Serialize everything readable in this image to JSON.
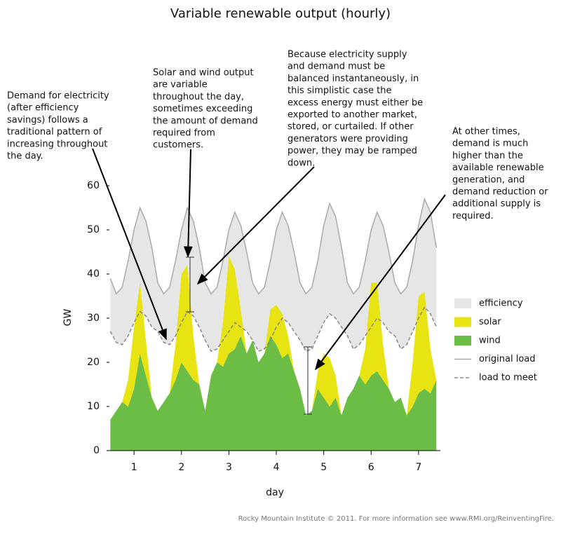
{
  "chart_data": {
    "type": "area",
    "title": "Variable renewable output (hourly)",
    "xlabel": "day",
    "ylabel": "GW",
    "xlim": [
      0.48,
      7.46
    ],
    "xticks": [
      1,
      2,
      3,
      4,
      5,
      6,
      7
    ],
    "ylim": [
      0,
      60
    ],
    "yticks": [
      0,
      10,
      20,
      30,
      40,
      50,
      60
    ],
    "x": [
      0.5,
      0.625,
      0.75,
      0.875,
      1,
      1.125,
      1.25,
      1.375,
      1.5,
      1.625,
      1.75,
      1.875,
      2,
      2.125,
      2.25,
      2.375,
      2.5,
      2.625,
      2.75,
      2.875,
      3,
      3.125,
      3.25,
      3.375,
      3.5,
      3.625,
      3.75,
      3.875,
      4,
      4.125,
      4.25,
      4.375,
      4.5,
      4.625,
      4.75,
      4.875,
      5,
      5.125,
      5.25,
      5.375,
      5.5,
      5.625,
      5.75,
      5.875,
      6,
      6.125,
      6.25,
      6.375,
      6.5,
      6.625,
      6.75,
      6.875,
      7,
      7.125,
      7.25,
      7.375
    ],
    "series": [
      {
        "name": "efficiency",
        "kind": "band",
        "color": "#e6e6e7"
      },
      {
        "name": "solar",
        "kind": "area",
        "color": "#e8e414",
        "values": [
          0,
          0,
          0,
          6,
          14,
          16,
          8,
          0,
          0,
          0,
          0,
          8,
          20,
          24,
          10,
          0,
          0,
          0,
          0,
          10,
          22,
          18,
          6,
          0,
          0,
          0,
          0,
          6,
          9,
          10,
          4,
          0,
          0,
          0,
          0,
          4,
          10,
          11,
          5,
          0,
          0,
          0,
          0,
          8,
          21,
          20,
          8,
          0,
          0,
          0,
          0,
          10,
          22,
          22,
          10,
          0
        ]
      },
      {
        "name": "wind",
        "kind": "area",
        "color": "#6bbd45",
        "values": [
          7,
          9,
          11,
          10,
          14,
          22,
          17,
          12,
          9,
          11,
          13,
          16,
          20,
          18,
          16,
          15,
          9,
          17,
          20,
          19,
          22,
          23,
          26,
          22,
          25,
          20,
          22,
          26,
          24,
          21,
          22,
          18,
          14,
          8,
          9,
          14,
          12,
          10,
          12,
          8,
          12,
          14,
          17,
          15,
          17,
          18,
          16,
          14,
          11,
          12,
          8,
          10,
          13,
          14,
          13,
          16
        ]
      },
      {
        "name": "original load",
        "kind": "line",
        "color": "#aaaaaa",
        "values": [
          39,
          35.5,
          37,
          43,
          50,
          55,
          52,
          46,
          38,
          35.5,
          37,
          43,
          50,
          55,
          52,
          46,
          38,
          35.5,
          37,
          43,
          50,
          54,
          51,
          45,
          38,
          35.5,
          37,
          43,
          50,
          54,
          51,
          45,
          38,
          35.5,
          37,
          43,
          51,
          56,
          53,
          46,
          38,
          35.5,
          37,
          43,
          50,
          54,
          51,
          45,
          38,
          35.5,
          37,
          43,
          51,
          57,
          54,
          46
        ]
      },
      {
        "name": "load to meet",
        "kind": "line",
        "dashed": true,
        "color": "#888888",
        "values": [
          27,
          24.5,
          24,
          26,
          29,
          31.5,
          30.5,
          28,
          27,
          24.5,
          24,
          26,
          29,
          31.5,
          30.5,
          28,
          25,
          22.5,
          23,
          25,
          27,
          29,
          28,
          27,
          25,
          22.5,
          23,
          25,
          28,
          30,
          29,
          27,
          25,
          22.5,
          23,
          26,
          29,
          31,
          30,
          28,
          26,
          23,
          24,
          26,
          28,
          30,
          29,
          27,
          26,
          23,
          24,
          27,
          30,
          32.5,
          31,
          28
        ]
      }
    ],
    "annotations": [
      [
        "Demand for electricity",
        "(after efficiency",
        "savings) follows a",
        "traditional pattern of",
        "increasing throughout",
        "the day."
      ],
      [
        "Solar and wind output",
        "are variable",
        "throughout the day,",
        "sometimes exceeding",
        "the amount of demand",
        "required from",
        "customers."
      ],
      [
        "Because electricity supply",
        "and demand must be",
        "balanced instantaneously, in",
        "this simplistic case the",
        "excess energy must either be",
        "exported to another market,",
        "stored, or curtailed. If other",
        "generators were providing",
        "power, they may be ramped",
        "down."
      ],
      [
        "At other times,",
        "demand is much",
        "higher than the",
        "available renewable",
        "generation, and",
        "demand reduction or",
        "additional supply is",
        "required."
      ]
    ],
    "footer": "Rocky Mountain Institute © 2011. For more information see www.RMI.org/ReinventingFire."
  }
}
